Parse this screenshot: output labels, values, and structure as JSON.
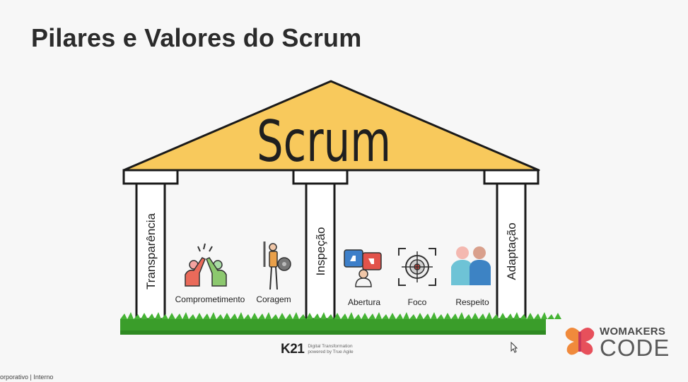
{
  "title": "Pilares e Valores do Scrum",
  "roof_label": "Scrum",
  "pillars": [
    "Transparência",
    "Inspeção",
    "Adaptação"
  ],
  "values": [
    "Comprometimento",
    "Coragem",
    "Abertura",
    "Foco",
    "Respeito"
  ],
  "footer": {
    "brand": "K21",
    "brand_tagline_1": "Digital Transformation",
    "brand_tagline_2": "powered by True Agile",
    "classification": "orporativo | Interno"
  },
  "partner_logo": {
    "line1": "WOMAKERS",
    "line2": "CODE"
  },
  "colors": {
    "roof": "#f8c95c",
    "grass": "#3a9d2a",
    "text": "#1f1f1f"
  }
}
